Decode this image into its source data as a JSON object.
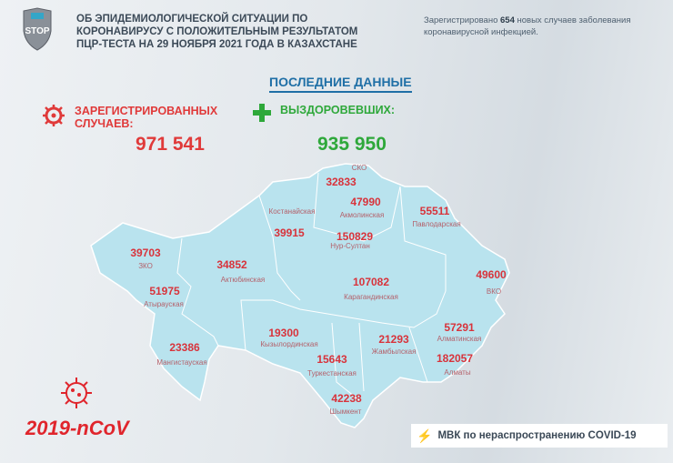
{
  "header": {
    "logo_text": "STOP",
    "title_lines": [
      "ОБ ЭПИДЕМИОЛОГИЧЕСКОЙ СИТУАЦИИ ПО",
      "КОРОНАВИРУСУ С ПОЛОЖИТЕЛЬНЫМ РЕЗУЛЬТАТОМ",
      "ПЦР-ТЕСТА НА 29 НОЯБРЯ 2021 ГОДА В КАЗАХСТАНЕ"
    ],
    "note_prefix": "Зарегистрировано ",
    "note_count": "654",
    "note_suffix": " новых случаев заболевания коронавирусной инфекцией."
  },
  "latest_title": "ПОСЛЕДНИЕ ДАННЫЕ",
  "registered": {
    "label_line1": "ЗАРЕГИСТРИРОВАННЫХ",
    "label_line2": "СЛУЧАЕВ:",
    "value": "971 541",
    "icon": "virus-icon"
  },
  "recovered": {
    "label": "ВЫЗДОРОВЕВШИХ:",
    "value": "935 950",
    "icon": "plus-icon"
  },
  "regions": [
    {
      "name": "СКО",
      "value": "32833"
    },
    {
      "name": "Акмолинская",
      "value": "47990"
    },
    {
      "name": "Павлодарская",
      "value": "55511"
    },
    {
      "name": "Костанайская",
      "value": "39915"
    },
    {
      "name": "Нур-Султан",
      "value": "150829"
    },
    {
      "name": "ЗКО",
      "value": "39703"
    },
    {
      "name": "Актюбинская",
      "value": "34852"
    },
    {
      "name": "Атырауская",
      "value": "51975"
    },
    {
      "name": "Карагандинская",
      "value": "107082"
    },
    {
      "name": "ВКО",
      "value": "49600"
    },
    {
      "name": "Кызылординская",
      "value": "19300"
    },
    {
      "name": "Алматинская",
      "value": "57291"
    },
    {
      "name": "Жамбылская",
      "value": "21293"
    },
    {
      "name": "Туркестанская",
      "value": "15643"
    },
    {
      "name": "Алматы",
      "value": "182057"
    },
    {
      "name": "Мангистауская",
      "value": "23386"
    },
    {
      "name": "Шымкент",
      "value": "42238"
    }
  ],
  "footer": {
    "ncov": "2019-nCoV",
    "org": "МВК по нераспространению COVID-19",
    "icon": "lightning-icon"
  },
  "colors": {
    "red": "#d8333b",
    "green": "#2ea83a",
    "map": "#b9e3ee",
    "accent": "#1f6fa6"
  }
}
